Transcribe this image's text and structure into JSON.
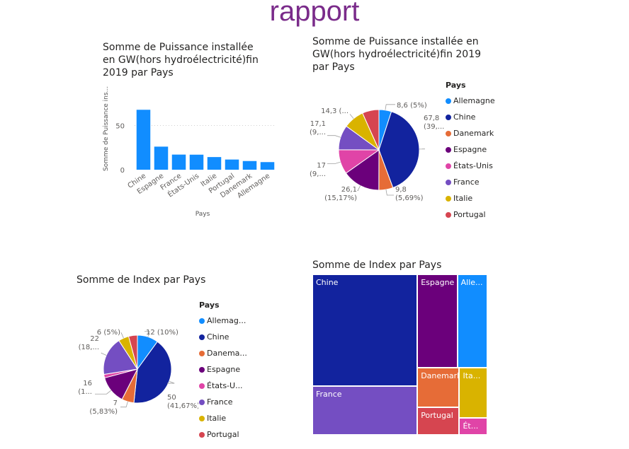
{
  "page": {
    "title": "rapport"
  },
  "chart_data": [
    {
      "id": "bar",
      "type": "bar",
      "title": "Somme de Puissance installée en GW(hors hydroélectricité)fin 2019 par Pays",
      "title_lines": [
        "Somme de Puissance installée",
        "en GW(hors hydroélectricité)fin",
        "2019 par Pays"
      ],
      "xlabel": "Pays",
      "ylabel": "Somme de Puissance ins...",
      "categories": [
        "Chine",
        "Espagne",
        "France",
        "États-Unis",
        "Italie",
        "Portugal",
        "Danemark",
        "Allemagne"
      ],
      "values": [
        67.8,
        26.1,
        17.1,
        17,
        14.3,
        11.5,
        9.8,
        8.6
      ],
      "yticks": [
        "0",
        "50"
      ],
      "ylim": [
        0,
        80
      ],
      "color": "#118DFF",
      "grid": "dashed"
    },
    {
      "id": "pie1",
      "type": "pie",
      "title": "Somme de Puissance installée en GW(hors hydroélectricité)fin 2019 par Pays",
      "title_lines": [
        "Somme de Puissance installée en",
        "GW(hors hydroélectricité)fin 2019",
        "par Pays"
      ],
      "legend_title": "Pays",
      "legend_placement": "right",
      "categories": [
        "Allemagne",
        "Chine",
        "Danemark",
        "Espagne",
        "États-Unis",
        "France",
        "Italie",
        "Portugal"
      ],
      "values": [
        8.6,
        67.8,
        9.8,
        26.1,
        17,
        17.1,
        14.3,
        11.5
      ],
      "labels": [
        {
          "l1": "8,6 (5%)",
          "l2": ""
        },
        {
          "l1": "67,8",
          "l2": "(39,..."
        },
        {
          "l1": "9,8",
          "l2": "(5,69%)"
        },
        {
          "l1": "26,1",
          "l2": "(15,17%)"
        },
        {
          "l1": "17",
          "l2": "(9,..."
        },
        {
          "l1": "17,1",
          "l2": "(9,..."
        },
        {
          "l1": "14,3 (...",
          "l2": ""
        },
        {
          "l1": "",
          "l2": ""
        }
      ]
    },
    {
      "id": "pie2",
      "type": "pie",
      "title": "Somme de Index par Pays",
      "legend_title": "Pays",
      "legend_placement": "right",
      "categories": [
        "Allemag...",
        "Chine",
        "Danema...",
        "Espagne",
        "États-U...",
        "France",
        "Italie",
        "Portugal"
      ],
      "values": [
        12,
        50,
        7,
        16,
        2,
        22,
        6,
        5
      ],
      "labels": [
        {
          "l1": "12 (10%)",
          "l2": ""
        },
        {
          "l1": "50",
          "l2": "(41,67%)"
        },
        {
          "l1": "7",
          "l2": "(5,83%)"
        },
        {
          "l1": "16",
          "l2": "(1..."
        },
        {
          "l1": "",
          "l2": ""
        },
        {
          "l1": "22",
          "l2": "(18,..."
        },
        {
          "l1": "6 (5%)",
          "l2": ""
        },
        {
          "l1": "",
          "l2": ""
        }
      ]
    },
    {
      "id": "treemap",
      "type": "treemap",
      "title": "Somme de Index par Pays",
      "cells": [
        {
          "label": "Chine",
          "value": 50,
          "color": "#12239E"
        },
        {
          "label": "France",
          "value": 22,
          "color": "#744EC2"
        },
        {
          "label": "Espagne",
          "value": 16,
          "color": "#6B007B"
        },
        {
          "label": "Alle...",
          "value": 12,
          "color": "#118DFF"
        },
        {
          "label": "Danemark",
          "value": 7,
          "color": "#E66C37"
        },
        {
          "label": "Portugal",
          "value": 5,
          "color": "#D64550"
        },
        {
          "label": "Ita...",
          "value": 6,
          "color": "#D9B300"
        },
        {
          "label": "Ét...",
          "value": 2,
          "color": "#E044A7"
        }
      ]
    }
  ],
  "palette": {
    "Allemagne": "#118DFF",
    "Chine": "#12239E",
    "Danemark": "#E66C37",
    "Espagne": "#6B007B",
    "États-Unis": "#E044A7",
    "France": "#744EC2",
    "Italie": "#D9B300",
    "Portugal": "#D64550"
  }
}
